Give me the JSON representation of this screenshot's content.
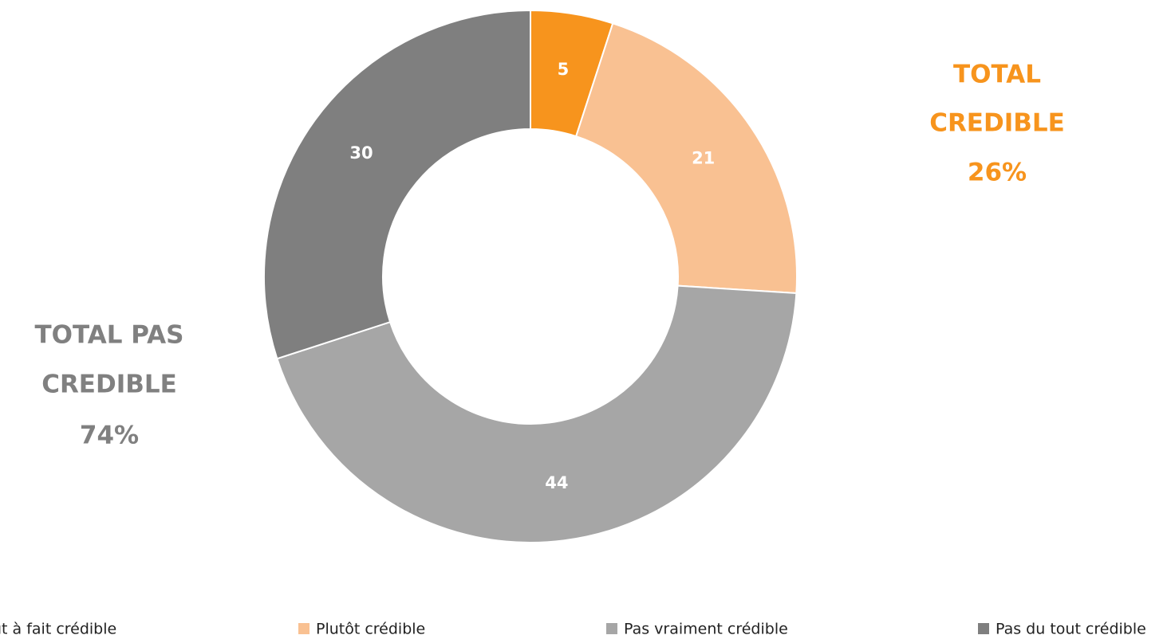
{
  "chart_data": {
    "type": "donut",
    "categories": [
      "Tout à fait crédible",
      "Plutôt crédible",
      "Pas vraiment crédible",
      "Pas du tout crédible"
    ],
    "values": [
      5,
      21,
      44,
      30
    ],
    "colors": [
      "#f7941d",
      "#f9c192",
      "#a6a6a6",
      "#7f7f7f"
    ],
    "legend": "bottom",
    "annotations": [
      {
        "lines": [
          "TOTAL",
          "CREDIBLE",
          "26%"
        ],
        "color": "#f7941d"
      },
      {
        "lines": [
          "TOTAL PAS",
          "CREDIBLE",
          "74%"
        ],
        "color": "#808080"
      }
    ]
  }
}
